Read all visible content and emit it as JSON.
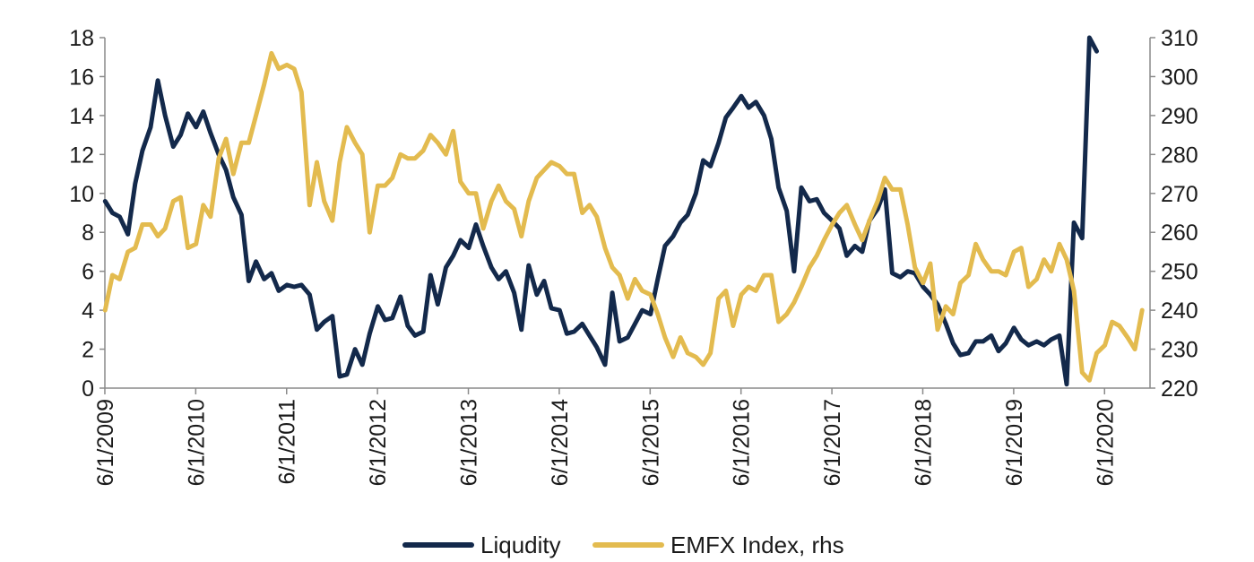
{
  "chart_data": {
    "type": "line",
    "title": "",
    "x_tick_labels": [
      "6/1/2009",
      "6/1/2010",
      "6/1/2011",
      "6/1/2012",
      "6/1/2013",
      "6/1/2014",
      "6/1/2015",
      "6/1/2016",
      "6/1/2017",
      "6/1/2018",
      "6/1/2019",
      "6/1/2020"
    ],
    "x_range": [
      2009.417,
      2020.917
    ],
    "y_left": {
      "min": 0,
      "max": 18,
      "ticks": [
        "0",
        "2",
        "4",
        "6",
        "8",
        "10",
        "12",
        "14",
        "16",
        "18"
      ]
    },
    "y_right": {
      "min": 220,
      "max": 310,
      "ticks": [
        "220",
        "230",
        "240",
        "250",
        "260",
        "270",
        "280",
        "290",
        "300",
        "310"
      ]
    },
    "legend_position": "bottom-center",
    "series": [
      {
        "name": "Liqudity",
        "axis": "left",
        "color": "#13294b",
        "points": [
          [
            2009.42,
            9.6
          ],
          [
            2009.5,
            9.0
          ],
          [
            2009.58,
            8.8
          ],
          [
            2009.67,
            7.9
          ],
          [
            2009.75,
            10.5
          ],
          [
            2009.83,
            12.2
          ],
          [
            2009.92,
            13.4
          ],
          [
            2010.0,
            15.8
          ],
          [
            2010.08,
            14.0
          ],
          [
            2010.17,
            12.4
          ],
          [
            2010.25,
            13.0
          ],
          [
            2010.33,
            14.1
          ],
          [
            2010.42,
            13.4
          ],
          [
            2010.5,
            14.2
          ],
          [
            2010.58,
            13.1
          ],
          [
            2010.67,
            12.0
          ],
          [
            2010.75,
            11.2
          ],
          [
            2010.83,
            9.8
          ],
          [
            2010.92,
            8.9
          ],
          [
            2011.0,
            5.5
          ],
          [
            2011.08,
            6.5
          ],
          [
            2011.17,
            5.6
          ],
          [
            2011.25,
            5.9
          ],
          [
            2011.33,
            5.0
          ],
          [
            2011.42,
            5.3
          ],
          [
            2011.5,
            5.2
          ],
          [
            2011.58,
            5.3
          ],
          [
            2011.67,
            4.8
          ],
          [
            2011.75,
            3.0
          ],
          [
            2011.83,
            3.4
          ],
          [
            2011.92,
            3.7
          ],
          [
            2012.0,
            0.6
          ],
          [
            2012.08,
            0.7
          ],
          [
            2012.17,
            2.0
          ],
          [
            2012.25,
            1.2
          ],
          [
            2012.33,
            2.8
          ],
          [
            2012.42,
            4.2
          ],
          [
            2012.5,
            3.5
          ],
          [
            2012.58,
            3.6
          ],
          [
            2012.67,
            4.7
          ],
          [
            2012.75,
            3.2
          ],
          [
            2012.83,
            2.7
          ],
          [
            2012.92,
            2.9
          ],
          [
            2013.0,
            5.8
          ],
          [
            2013.08,
            4.3
          ],
          [
            2013.17,
            6.2
          ],
          [
            2013.25,
            6.8
          ],
          [
            2013.33,
            7.6
          ],
          [
            2013.42,
            7.2
          ],
          [
            2013.5,
            8.4
          ],
          [
            2013.58,
            7.3
          ],
          [
            2013.67,
            6.2
          ],
          [
            2013.75,
            5.6
          ],
          [
            2013.83,
            6.0
          ],
          [
            2013.92,
            4.9
          ],
          [
            2014.0,
            3.0
          ],
          [
            2014.08,
            6.3
          ],
          [
            2014.17,
            4.8
          ],
          [
            2014.25,
            5.5
          ],
          [
            2014.33,
            4.1
          ],
          [
            2014.42,
            4.0
          ],
          [
            2014.5,
            2.8
          ],
          [
            2014.58,
            2.9
          ],
          [
            2014.67,
            3.3
          ],
          [
            2014.75,
            2.7
          ],
          [
            2014.83,
            2.1
          ],
          [
            2014.92,
            1.2
          ],
          [
            2015.0,
            4.9
          ],
          [
            2015.08,
            2.4
          ],
          [
            2015.17,
            2.6
          ],
          [
            2015.25,
            3.3
          ],
          [
            2015.33,
            4.0
          ],
          [
            2015.42,
            3.8
          ],
          [
            2015.5,
            5.6
          ],
          [
            2015.58,
            7.3
          ],
          [
            2015.67,
            7.8
          ],
          [
            2015.75,
            8.5
          ],
          [
            2015.83,
            8.9
          ],
          [
            2015.92,
            10.0
          ],
          [
            2016.0,
            11.7
          ],
          [
            2016.08,
            11.4
          ],
          [
            2016.17,
            12.6
          ],
          [
            2016.25,
            13.9
          ],
          [
            2016.33,
            14.4
          ],
          [
            2016.42,
            15.0
          ],
          [
            2016.5,
            14.4
          ],
          [
            2016.58,
            14.7
          ],
          [
            2016.67,
            14.0
          ],
          [
            2016.75,
            12.8
          ],
          [
            2016.83,
            10.3
          ],
          [
            2016.92,
            9.1
          ],
          [
            2017.0,
            6.0
          ],
          [
            2017.08,
            10.3
          ],
          [
            2017.17,
            9.6
          ],
          [
            2017.25,
            9.7
          ],
          [
            2017.33,
            9.0
          ],
          [
            2017.42,
            8.6
          ],
          [
            2017.5,
            8.2
          ],
          [
            2017.58,
            6.8
          ],
          [
            2017.67,
            7.3
          ],
          [
            2017.75,
            7.0
          ],
          [
            2017.83,
            8.6
          ],
          [
            2017.92,
            9.2
          ],
          [
            2018.0,
            10.2
          ],
          [
            2018.08,
            5.9
          ],
          [
            2018.17,
            5.7
          ],
          [
            2018.25,
            6.0
          ],
          [
            2018.33,
            5.9
          ],
          [
            2018.42,
            5.2
          ],
          [
            2018.5,
            4.8
          ],
          [
            2018.58,
            4.3
          ],
          [
            2018.67,
            3.3
          ],
          [
            2018.75,
            2.3
          ],
          [
            2018.83,
            1.7
          ],
          [
            2018.92,
            1.8
          ],
          [
            2019.0,
            2.4
          ],
          [
            2019.08,
            2.4
          ],
          [
            2019.17,
            2.7
          ],
          [
            2019.25,
            1.9
          ],
          [
            2019.33,
            2.3
          ],
          [
            2019.42,
            3.1
          ],
          [
            2019.5,
            2.5
          ],
          [
            2019.58,
            2.2
          ],
          [
            2019.67,
            2.4
          ],
          [
            2019.75,
            2.2
          ],
          [
            2019.83,
            2.5
          ],
          [
            2019.92,
            2.7
          ],
          [
            2020.0,
            0.2
          ],
          [
            2020.08,
            8.5
          ],
          [
            2020.17,
            7.7
          ],
          [
            2020.25,
            18.0
          ],
          [
            2020.33,
            17.3
          ]
        ]
      },
      {
        "name": "EMFX Index, rhs",
        "axis": "right",
        "color": "#e3bb4f",
        "points": [
          [
            2009.42,
            240
          ],
          [
            2009.5,
            249
          ],
          [
            2009.58,
            248
          ],
          [
            2009.67,
            255
          ],
          [
            2009.75,
            256
          ],
          [
            2009.83,
            262
          ],
          [
            2009.92,
            262
          ],
          [
            2010.0,
            259
          ],
          [
            2010.08,
            261
          ],
          [
            2010.17,
            268
          ],
          [
            2010.25,
            269
          ],
          [
            2010.33,
            256
          ],
          [
            2010.42,
            257
          ],
          [
            2010.5,
            267
          ],
          [
            2010.58,
            264
          ],
          [
            2010.67,
            279
          ],
          [
            2010.75,
            284
          ],
          [
            2010.83,
            275
          ],
          [
            2010.92,
            283
          ],
          [
            2011.0,
            283
          ],
          [
            2011.08,
            290
          ],
          [
            2011.17,
            298
          ],
          [
            2011.25,
            306
          ],
          [
            2011.33,
            302
          ],
          [
            2011.42,
            303
          ],
          [
            2011.5,
            302
          ],
          [
            2011.58,
            296
          ],
          [
            2011.67,
            267
          ],
          [
            2011.75,
            278
          ],
          [
            2011.83,
            268
          ],
          [
            2011.92,
            263
          ],
          [
            2012.0,
            278
          ],
          [
            2012.08,
            287
          ],
          [
            2012.17,
            283
          ],
          [
            2012.25,
            280
          ],
          [
            2012.33,
            260
          ],
          [
            2012.42,
            272
          ],
          [
            2012.5,
            272
          ],
          [
            2012.58,
            274
          ],
          [
            2012.67,
            280
          ],
          [
            2012.75,
            279
          ],
          [
            2012.83,
            279
          ],
          [
            2012.92,
            281
          ],
          [
            2013.0,
            285
          ],
          [
            2013.08,
            283
          ],
          [
            2013.17,
            280
          ],
          [
            2013.25,
            286
          ],
          [
            2013.33,
            273
          ],
          [
            2013.42,
            270
          ],
          [
            2013.5,
            270
          ],
          [
            2013.58,
            261
          ],
          [
            2013.67,
            268
          ],
          [
            2013.75,
            272
          ],
          [
            2013.83,
            268
          ],
          [
            2013.92,
            266
          ],
          [
            2014.0,
            259
          ],
          [
            2014.08,
            268
          ],
          [
            2014.17,
            274
          ],
          [
            2014.25,
            276
          ],
          [
            2014.33,
            278
          ],
          [
            2014.42,
            277
          ],
          [
            2014.5,
            275
          ],
          [
            2014.58,
            275
          ],
          [
            2014.67,
            265
          ],
          [
            2014.75,
            267
          ],
          [
            2014.83,
            264
          ],
          [
            2014.92,
            256
          ],
          [
            2015.0,
            251
          ],
          [
            2015.08,
            249
          ],
          [
            2015.17,
            243
          ],
          [
            2015.25,
            248
          ],
          [
            2015.33,
            245
          ],
          [
            2015.42,
            244
          ],
          [
            2015.5,
            239
          ],
          [
            2015.58,
            233
          ],
          [
            2015.67,
            228
          ],
          [
            2015.75,
            233
          ],
          [
            2015.83,
            229
          ],
          [
            2015.92,
            228
          ],
          [
            2016.0,
            226
          ],
          [
            2016.08,
            229
          ],
          [
            2016.17,
            243
          ],
          [
            2016.25,
            245
          ],
          [
            2016.33,
            236
          ],
          [
            2016.42,
            244
          ],
          [
            2016.5,
            246
          ],
          [
            2016.58,
            245
          ],
          [
            2016.67,
            249
          ],
          [
            2016.75,
            249
          ],
          [
            2016.83,
            237
          ],
          [
            2016.92,
            239
          ],
          [
            2017.0,
            242
          ],
          [
            2017.08,
            246
          ],
          [
            2017.17,
            251
          ],
          [
            2017.25,
            254
          ],
          [
            2017.33,
            258
          ],
          [
            2017.42,
            262
          ],
          [
            2017.5,
            265
          ],
          [
            2017.58,
            267
          ],
          [
            2017.67,
            262
          ],
          [
            2017.75,
            258
          ],
          [
            2017.83,
            263
          ],
          [
            2017.92,
            268
          ],
          [
            2018.0,
            274
          ],
          [
            2018.08,
            271
          ],
          [
            2018.17,
            271
          ],
          [
            2018.25,
            262
          ],
          [
            2018.33,
            251
          ],
          [
            2018.42,
            247
          ],
          [
            2018.5,
            252
          ],
          [
            2018.58,
            235
          ],
          [
            2018.67,
            241
          ],
          [
            2018.75,
            239
          ],
          [
            2018.83,
            247
          ],
          [
            2018.92,
            249
          ],
          [
            2019.0,
            257
          ],
          [
            2019.08,
            253
          ],
          [
            2019.17,
            250
          ],
          [
            2019.25,
            250
          ],
          [
            2019.33,
            249
          ],
          [
            2019.42,
            255
          ],
          [
            2019.5,
            256
          ],
          [
            2019.58,
            246
          ],
          [
            2019.67,
            248
          ],
          [
            2019.75,
            253
          ],
          [
            2019.83,
            250
          ],
          [
            2019.92,
            257
          ],
          [
            2020.0,
            253
          ],
          [
            2020.08,
            245
          ],
          [
            2020.17,
            224
          ],
          [
            2020.25,
            222
          ],
          [
            2020.33,
            229
          ],
          [
            2020.42,
            231
          ],
          [
            2020.5,
            237
          ],
          [
            2020.58,
            236
          ],
          [
            2020.67,
            233
          ],
          [
            2020.75,
            230
          ],
          [
            2020.83,
            240
          ]
        ]
      }
    ]
  }
}
